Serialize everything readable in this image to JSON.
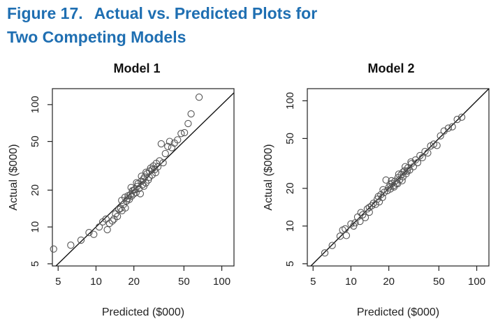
{
  "figure": {
    "number": "Figure 17.",
    "title_line1": "Actual vs. Predicted Plots for",
    "title_line2": "Two Competing Models",
    "accent_color": "#1f6fb2"
  },
  "chart_data": [
    {
      "type": "scatter",
      "title": "Model 1",
      "xlabel": "Predicted ($000)",
      "ylabel": "Actual ($000)",
      "xscale": "log",
      "yscale": "log",
      "xlim": [
        4.5,
        125
      ],
      "ylim": [
        4.8,
        135
      ],
      "xticks": [
        5,
        10,
        20,
        50,
        100
      ],
      "yticks": [
        5,
        10,
        20,
        50,
        100
      ],
      "reference_line": "y = x",
      "points": [
        [
          4.6,
          6.6
        ],
        [
          6.3,
          7.1
        ],
        [
          7.6,
          7.8
        ],
        [
          8.8,
          9.0
        ],
        [
          9.6,
          8.7
        ],
        [
          10.6,
          10.0
        ],
        [
          11.3,
          11.0
        ],
        [
          12.0,
          11.6
        ],
        [
          12.3,
          9.5
        ],
        [
          12.8,
          10.7
        ],
        [
          13.5,
          11.2
        ],
        [
          13.9,
          11.6
        ],
        [
          14.3,
          12.8
        ],
        [
          14.8,
          12.2
        ],
        [
          15.2,
          13.9
        ],
        [
          15.7,
          14.2
        ],
        [
          16.1,
          13.6
        ],
        [
          16.6,
          15.3
        ],
        [
          17.1,
          14.3
        ],
        [
          17.5,
          16.3
        ],
        [
          17.9,
          17.1
        ],
        [
          18.4,
          16.8
        ],
        [
          18.8,
          18.4
        ],
        [
          19.2,
          17.9
        ],
        [
          19.5,
          19.8
        ],
        [
          19.9,
          18.6
        ],
        [
          20.4,
          20.3
        ],
        [
          20.8,
          19.1
        ],
        [
          21.2,
          21.4
        ],
        [
          21.6,
          22.6
        ],
        [
          22.0,
          20.6
        ],
        [
          22.5,
          18.7
        ],
        [
          22.9,
          23.6
        ],
        [
          23.4,
          22.1
        ],
        [
          23.8,
          24.6
        ],
        [
          24.4,
          25.6
        ],
        [
          24.9,
          22.9
        ],
        [
          25.4,
          27.2
        ],
        [
          26.0,
          24.2
        ],
        [
          26.6,
          28.6
        ],
        [
          27.2,
          30.3
        ],
        [
          27.9,
          26.6
        ],
        [
          28.6,
          31.5
        ],
        [
          29.3,
          29.4
        ],
        [
          30.1,
          33.1
        ],
        [
          31.0,
          31.0
        ],
        [
          32.0,
          34.7
        ],
        [
          33.0,
          47.8
        ],
        [
          34.2,
          33.5
        ],
        [
          35.6,
          39.8
        ],
        [
          37.2,
          45.5
        ],
        [
          38.5,
          50.0
        ],
        [
          40.0,
          44.5
        ],
        [
          42.0,
          48.5
        ],
        [
          44.5,
          51.5
        ],
        [
          47.5,
          58.0
        ],
        [
          50.5,
          59.0
        ],
        [
          54.0,
          70.0
        ],
        [
          57.0,
          84.0
        ],
        [
          66.0,
          115.0
        ],
        [
          18.0,
          18.0
        ],
        [
          20.0,
          20.0
        ],
        [
          21.0,
          23.0
        ],
        [
          24.0,
          21.5
        ],
        [
          26.5,
          25.5
        ],
        [
          28.0,
          29.5
        ],
        [
          29.8,
          27.8
        ],
        [
          16.0,
          16.5
        ],
        [
          19.0,
          21.0
        ],
        [
          23.0,
          26.0
        ],
        [
          25.0,
          28.0
        ],
        [
          17.0,
          17.5
        ]
      ]
    },
    {
      "type": "scatter",
      "title": "Model 2",
      "xlabel": "Predicted ($000)",
      "ylabel": "Actual ($000)",
      "xscale": "log",
      "yscale": "log",
      "xlim": [
        4.5,
        125
      ],
      "ylim": [
        4.8,
        125
      ],
      "xticks": [
        5,
        10,
        20,
        50,
        100
      ],
      "yticks": [
        5,
        10,
        20,
        50,
        100
      ],
      "reference_line": "y = x",
      "points": [
        [
          6.2,
          6.1
        ],
        [
          7.1,
          7.0
        ],
        [
          8.2,
          8.3
        ],
        [
          8.6,
          9.3
        ],
        [
          9.2,
          8.4
        ],
        [
          10.0,
          10.4
        ],
        [
          10.8,
          10.6
        ],
        [
          11.3,
          11.8
        ],
        [
          11.8,
          10.9
        ],
        [
          12.4,
          12.3
        ],
        [
          13.0,
          11.7
        ],
        [
          13.5,
          13.7
        ],
        [
          14.0,
          12.9
        ],
        [
          14.6,
          14.5
        ],
        [
          15.1,
          15.2
        ],
        [
          15.7,
          14.9
        ],
        [
          16.2,
          16.4
        ],
        [
          16.8,
          15.6
        ],
        [
          17.3,
          17.8
        ],
        [
          17.8,
          16.9
        ],
        [
          18.4,
          18.6
        ],
        [
          19.0,
          23.3
        ],
        [
          19.5,
          19.2
        ],
        [
          20.1,
          20.5
        ],
        [
          20.6,
          19.8
        ],
        [
          21.2,
          21.9
        ],
        [
          21.8,
          21.0
        ],
        [
          22.4,
          22.8
        ],
        [
          23.0,
          22.0
        ],
        [
          23.7,
          24.4
        ],
        [
          24.4,
          23.4
        ],
        [
          25.1,
          25.8
        ],
        [
          25.9,
          24.7
        ],
        [
          26.7,
          27.6
        ],
        [
          27.5,
          26.2
        ],
        [
          28.4,
          29.2
        ],
        [
          29.3,
          28.0
        ],
        [
          30.3,
          31.5
        ],
        [
          31.4,
          29.8
        ],
        [
          32.6,
          33.7
        ],
        [
          33.9,
          32.1
        ],
        [
          35.4,
          36.5
        ],
        [
          37.0,
          35.2
        ],
        [
          38.8,
          39.4
        ],
        [
          40.8,
          38.3
        ],
        [
          43.0,
          43.6
        ],
        [
          45.5,
          45.1
        ],
        [
          48.3,
          44.0
        ],
        [
          51.5,
          52.5
        ],
        [
          55.0,
          57.4
        ],
        [
          59.5,
          60.5
        ],
        [
          64.0,
          62.0
        ],
        [
          70.0,
          71.0
        ],
        [
          76.0,
          74.0
        ],
        [
          18.0,
          19.5
        ],
        [
          20.5,
          21.5
        ],
        [
          22.0,
          20.5
        ],
        [
          24.0,
          26.0
        ],
        [
          26.0,
          27.0
        ],
        [
          28.0,
          27.5
        ],
        [
          30.0,
          32.5
        ],
        [
          21.0,
          23.0
        ],
        [
          16.5,
          17.2
        ],
        [
          14.0,
          14.1
        ],
        [
          12.0,
          12.8
        ],
        [
          10.5,
          10.0
        ],
        [
          9.0,
          9.5
        ],
        [
          23.5,
          21.8
        ],
        [
          25.5,
          23.0
        ],
        [
          27.0,
          29.8
        ]
      ]
    }
  ]
}
